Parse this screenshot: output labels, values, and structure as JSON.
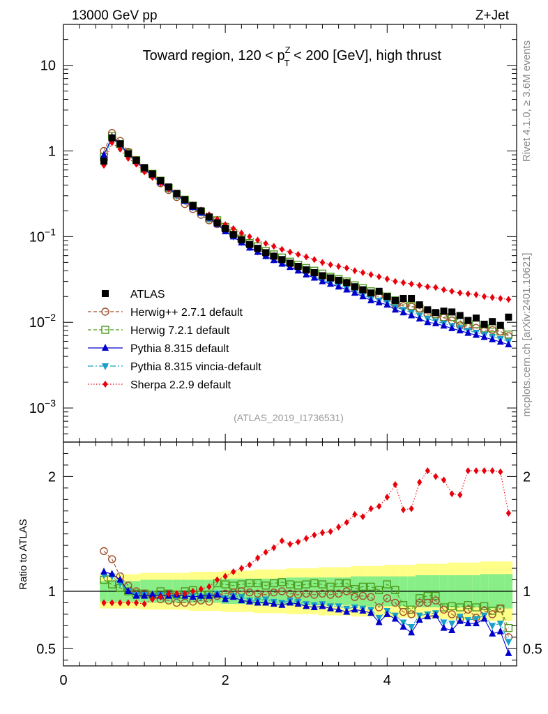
{
  "header": {
    "energy": "13000 GeV pp",
    "process": "Z+Jet",
    "side_label": "Rivet 4.1.0, ≥ 3.6M events",
    "side_label2": "mcplots.cern.ch [arXiv:2401.10621]"
  },
  "colors": {
    "atlas": "#000000",
    "herwigpp": "#a0522d",
    "herwig7": "#4c9a1c",
    "pythia": "#0000cc",
    "vincia": "#1aa0c8",
    "sherpa": "#e8000b",
    "band_yellow": "#ffff88",
    "band_green": "#88ee88"
  },
  "chart_data": {
    "type": "scatter",
    "title_parts": {
      "pre": "Toward region, 120 < p",
      "sup": "Z",
      "sub": "T",
      "post": " < 200 [GeV], high thrust"
    },
    "analysis_id": "(ATLAS_2019_I1736531)",
    "xlim": [
      0,
      5.6
    ],
    "x_ticks": [
      "0",
      "2",
      "4"
    ],
    "main": {
      "yscale": "log",
      "ylim": [
        0.0004,
        30
      ],
      "y_ticks": [
        {
          "v": 10,
          "base": "10",
          "exp": ""
        },
        {
          "v": 1,
          "base": "1",
          "exp": ""
        },
        {
          "v": 0.1,
          "base": "10",
          "exp": "−1"
        },
        {
          "v": 0.01,
          "base": "10",
          "exp": "−2"
        },
        {
          "v": 0.001,
          "base": "10",
          "exp": "−3"
        }
      ]
    },
    "ratio": {
      "ylabel": "Ratio to ATLAS",
      "ylim": [
        0.35,
        2.3
      ],
      "y_ticks": [
        "0.5",
        "1",
        "2"
      ],
      "band_yellow": [
        0.85,
        0.85,
        0.85,
        0.85,
        0.85,
        0.84,
        0.84,
        0.84,
        0.84,
        0.84,
        0.84,
        0.83,
        0.83,
        0.83,
        0.83,
        0.82,
        0.82,
        0.82,
        0.82,
        0.81,
        0.81,
        0.81,
        0.81,
        0.8,
        0.8,
        0.8,
        0.8,
        0.79,
        0.79,
        0.79,
        0.79,
        0.78,
        0.78,
        0.78,
        0.78,
        0.77,
        0.77,
        0.77,
        0.77,
        0.76,
        0.76,
        0.76,
        0.76,
        0.75,
        0.75,
        0.75,
        0.75,
        0.74,
        0.74,
        0.74,
        0.74,
        0.73,
        0.73,
        0.73,
        0.73
      ],
      "band_green": [
        0.91,
        0.91,
        0.91,
        0.91,
        0.91,
        0.9,
        0.9,
        0.9,
        0.9,
        0.9,
        0.9,
        0.9,
        0.9,
        0.9,
        0.9,
        0.89,
        0.89,
        0.89,
        0.89,
        0.89,
        0.89,
        0.89,
        0.89,
        0.88,
        0.88,
        0.88,
        0.88,
        0.88,
        0.88,
        0.88,
        0.88,
        0.87,
        0.87,
        0.87,
        0.87,
        0.87,
        0.87,
        0.87,
        0.87,
        0.86,
        0.86,
        0.86,
        0.86,
        0.86,
        0.86,
        0.86,
        0.86,
        0.85,
        0.85,
        0.85,
        0.85,
        0.85,
        0.85,
        0.85,
        0.85
      ]
    },
    "x": [
      0.5,
      0.6,
      0.7,
      0.8,
      0.9,
      1.0,
      1.1,
      1.2,
      1.3,
      1.4,
      1.5,
      1.6,
      1.7,
      1.8,
      1.9,
      2.0,
      2.1,
      2.2,
      2.3,
      2.4,
      2.5,
      2.6,
      2.7,
      2.8,
      2.9,
      3.0,
      3.1,
      3.2,
      3.3,
      3.4,
      3.5,
      3.6,
      3.7,
      3.8,
      3.9,
      4.0,
      4.1,
      4.2,
      4.3,
      4.4,
      4.5,
      4.6,
      4.7,
      4.8,
      4.9,
      5.0,
      5.1,
      5.2,
      5.3,
      5.4,
      5.5
    ],
    "series": [
      {
        "name": "ATLAS",
        "style": "data",
        "values": [
          0.76,
          1.42,
          1.21,
          0.93,
          0.78,
          0.64,
          0.54,
          0.45,
          0.38,
          0.32,
          0.27,
          0.23,
          0.2,
          0.17,
          0.145,
          0.124,
          0.106,
          0.092,
          0.081,
          0.073,
          0.065,
          0.059,
          0.054,
          0.049,
          0.045,
          0.041,
          0.038,
          0.035,
          0.033,
          0.031,
          0.029,
          0.026,
          0.024,
          0.022,
          0.023,
          0.02,
          0.018,
          0.019,
          0.019,
          0.016,
          0.014,
          0.013,
          0.0135,
          0.0132,
          0.012,
          0.0105,
          0.0112,
          0.0095,
          0.0102,
          0.0092,
          0.0115
        ],
        "ratio": [
          1.0,
          1.0,
          1.0,
          1.0,
          1.0,
          1.0,
          1.0,
          1.0,
          1.0,
          1.0,
          1.0,
          1.0,
          1.0,
          1.0,
          1.0,
          1.0,
          1.0,
          1.0,
          1.0,
          1.0,
          1.0,
          1.0,
          1.0,
          1.0,
          1.0,
          1.0,
          1.0,
          1.0,
          1.0,
          1.0,
          1.0,
          1.0,
          1.0,
          1.0,
          1.0,
          1.0,
          1.0,
          1.0,
          1.0,
          1.0,
          1.0,
          1.0,
          1.0,
          1.0,
          1.0,
          1.0,
          1.0,
          1.0,
          1.0,
          1.0,
          1.0
        ]
      },
      {
        "name": "Herwig++ 2.7.1 default",
        "style": "circle",
        "values": [
          1.0,
          1.62,
          1.31,
          0.98,
          0.78,
          0.63,
          0.52,
          0.42,
          0.35,
          0.29,
          0.24,
          0.21,
          0.18,
          0.155,
          0.14,
          0.12,
          0.105,
          0.092,
          0.08,
          0.072,
          0.063,
          0.059,
          0.053,
          0.048,
          0.044,
          0.04,
          0.037,
          0.034,
          0.032,
          0.03,
          0.029,
          0.025,
          0.023,
          0.021,
          0.02,
          0.019,
          0.016,
          0.0155,
          0.0152,
          0.0145,
          0.0125,
          0.012,
          0.0113,
          0.0105,
          0.0092,
          0.0088,
          0.0086,
          0.0079,
          0.0081,
          0.0078,
          0.0069
        ],
        "ratio": [
          1.35,
          1.28,
          1.13,
          1.05,
          1.0,
          0.98,
          0.96,
          0.93,
          0.92,
          0.9,
          0.9,
          0.91,
          0.92,
          0.91,
          0.96,
          0.98,
          0.99,
          1.0,
          0.99,
          0.98,
          0.97,
          0.99,
          1.0,
          0.98,
          0.97,
          0.98,
          0.97,
          0.98,
          0.97,
          0.98,
          1.0,
          0.95,
          0.96,
          0.95,
          0.86,
          0.94,
          0.9,
          0.82,
          0.8,
          0.9,
          0.9,
          0.92,
          0.84,
          0.8,
          0.76,
          0.84,
          0.77,
          0.83,
          0.8,
          0.85,
          0.6
        ]
      },
      {
        "name": "Herwig 7.2.1 default",
        "style": "square",
        "values": [
          0.85,
          1.5,
          1.2,
          0.95,
          0.78,
          0.62,
          0.54,
          0.45,
          0.37,
          0.31,
          0.27,
          0.23,
          0.195,
          0.165,
          0.155,
          0.13,
          0.11,
          0.095,
          0.084,
          0.077,
          0.068,
          0.062,
          0.057,
          0.051,
          0.047,
          0.043,
          0.04,
          0.037,
          0.034,
          0.032,
          0.03,
          0.027,
          0.025,
          0.023,
          0.021,
          0.02,
          0.018,
          0.016,
          0.0155,
          0.0145,
          0.013,
          0.0125,
          0.0115,
          0.0115,
          0.0105,
          0.009,
          0.0095,
          0.0085,
          0.0085,
          0.0078,
          0.0072
        ],
        "ratio": [
          1.1,
          1.06,
          1.03,
          1.0,
          0.98,
          0.98,
          0.97,
          1.0,
          0.98,
          0.97,
          1.0,
          1.01,
          0.97,
          0.97,
          1.07,
          1.06,
          1.05,
          1.06,
          1.07,
          1.07,
          1.05,
          1.07,
          1.08,
          1.06,
          1.05,
          1.06,
          1.07,
          1.06,
          1.04,
          1.07,
          1.07,
          1.02,
          1.04,
          1.04,
          1.01,
          1.06,
          1.01,
          0.88,
          0.84,
          0.94,
          0.96,
          0.96,
          0.86,
          0.87,
          0.86,
          0.88,
          0.86,
          0.87,
          0.83,
          0.85,
          0.68
        ]
      },
      {
        "name": "Pythia 8.315 default",
        "style": "triangle-up",
        "values": [
          0.9,
          1.45,
          1.2,
          0.92,
          0.76,
          0.61,
          0.52,
          0.43,
          0.37,
          0.31,
          0.26,
          0.22,
          0.19,
          0.165,
          0.14,
          0.115,
          0.1,
          0.085,
          0.074,
          0.066,
          0.059,
          0.053,
          0.048,
          0.044,
          0.04,
          0.036,
          0.033,
          0.03,
          0.028,
          0.026,
          0.024,
          0.022,
          0.02,
          0.018,
          0.017,
          0.016,
          0.014,
          0.013,
          0.012,
          0.011,
          0.01,
          0.0097,
          0.0091,
          0.0085,
          0.008,
          0.0075,
          0.0071,
          0.0067,
          0.0063,
          0.0059,
          0.0055
        ],
        "ratio": [
          1.17,
          1.15,
          1.1,
          1.0,
          0.96,
          0.96,
          0.97,
          0.96,
          0.96,
          0.97,
          0.96,
          0.95,
          0.96,
          0.96,
          0.97,
          0.93,
          0.95,
          0.92,
          0.91,
          0.9,
          0.9,
          0.89,
          0.88,
          0.9,
          0.89,
          0.87,
          0.86,
          0.87,
          0.85,
          0.84,
          0.82,
          0.84,
          0.83,
          0.81,
          0.73,
          0.8,
          0.76,
          0.69,
          0.64,
          0.75,
          0.78,
          0.79,
          0.68,
          0.66,
          0.74,
          0.72,
          0.72,
          0.76,
          0.63,
          0.65,
          0.46
        ]
      },
      {
        "name": "Pythia 8.315 vincia-default",
        "style": "triangle-down",
        "values": [
          0.82,
          1.4,
          1.15,
          0.9,
          0.74,
          0.6,
          0.51,
          0.43,
          0.36,
          0.3,
          0.26,
          0.22,
          0.19,
          0.16,
          0.14,
          0.118,
          0.1,
          0.086,
          0.075,
          0.067,
          0.06,
          0.054,
          0.049,
          0.045,
          0.041,
          0.037,
          0.034,
          0.031,
          0.029,
          0.027,
          0.025,
          0.023,
          0.021,
          0.019,
          0.018,
          0.017,
          0.015,
          0.014,
          0.013,
          0.012,
          0.011,
          0.0103,
          0.0097,
          0.0091,
          0.0086,
          0.008,
          0.0076,
          0.0072,
          0.0068,
          0.0064,
          0.006
        ],
        "ratio": [
          1.14,
          1.13,
          1.07,
          1.0,
          0.97,
          0.97,
          0.96,
          0.97,
          0.97,
          0.96,
          0.97,
          0.96,
          0.95,
          0.96,
          0.98,
          0.94,
          0.96,
          0.95,
          0.92,
          0.92,
          0.93,
          0.91,
          0.9,
          0.92,
          0.91,
          0.89,
          0.88,
          0.89,
          0.87,
          0.87,
          0.85,
          0.86,
          0.85,
          0.84,
          0.77,
          0.83,
          0.79,
          0.73,
          0.69,
          0.79,
          0.8,
          0.81,
          0.73,
          0.72,
          0.78,
          0.75,
          0.76,
          0.79,
          0.7,
          0.72,
          0.56
        ]
      },
      {
        "name": "Sherpa 2.2.9 default",
        "style": "diamond",
        "values": [
          0.68,
          1.25,
          1.05,
          0.82,
          0.7,
          0.57,
          0.49,
          0.42,
          0.36,
          0.31,
          0.27,
          0.235,
          0.205,
          0.18,
          0.16,
          0.138,
          0.124,
          0.11,
          0.1,
          0.091,
          0.083,
          0.077,
          0.071,
          0.066,
          0.062,
          0.058,
          0.054,
          0.05,
          0.047,
          0.045,
          0.043,
          0.04,
          0.038,
          0.036,
          0.034,
          0.032,
          0.03,
          0.029,
          0.028,
          0.027,
          0.026,
          0.0255,
          0.024,
          0.023,
          0.022,
          0.0215,
          0.021,
          0.02,
          0.0195,
          0.019,
          0.0185
        ],
        "ratio": [
          0.9,
          0.9,
          0.9,
          0.9,
          0.9,
          0.89,
          0.93,
          0.95,
          0.98,
          0.98,
          0.98,
          1.0,
          1.02,
          1.04,
          1.1,
          1.13,
          1.17,
          1.2,
          1.23,
          1.29,
          1.34,
          1.38,
          1.44,
          1.41,
          1.43,
          1.46,
          1.49,
          1.51,
          1.52,
          1.56,
          1.6,
          1.67,
          1.65,
          1.72,
          1.74,
          1.82,
          1.93,
          1.71,
          1.72,
          1.95,
          2.05,
          2.0,
          1.97,
          1.85,
          1.84,
          2.05,
          2.05,
          2.05,
          2.05,
          2.04,
          1.68
        ]
      }
    ]
  }
}
